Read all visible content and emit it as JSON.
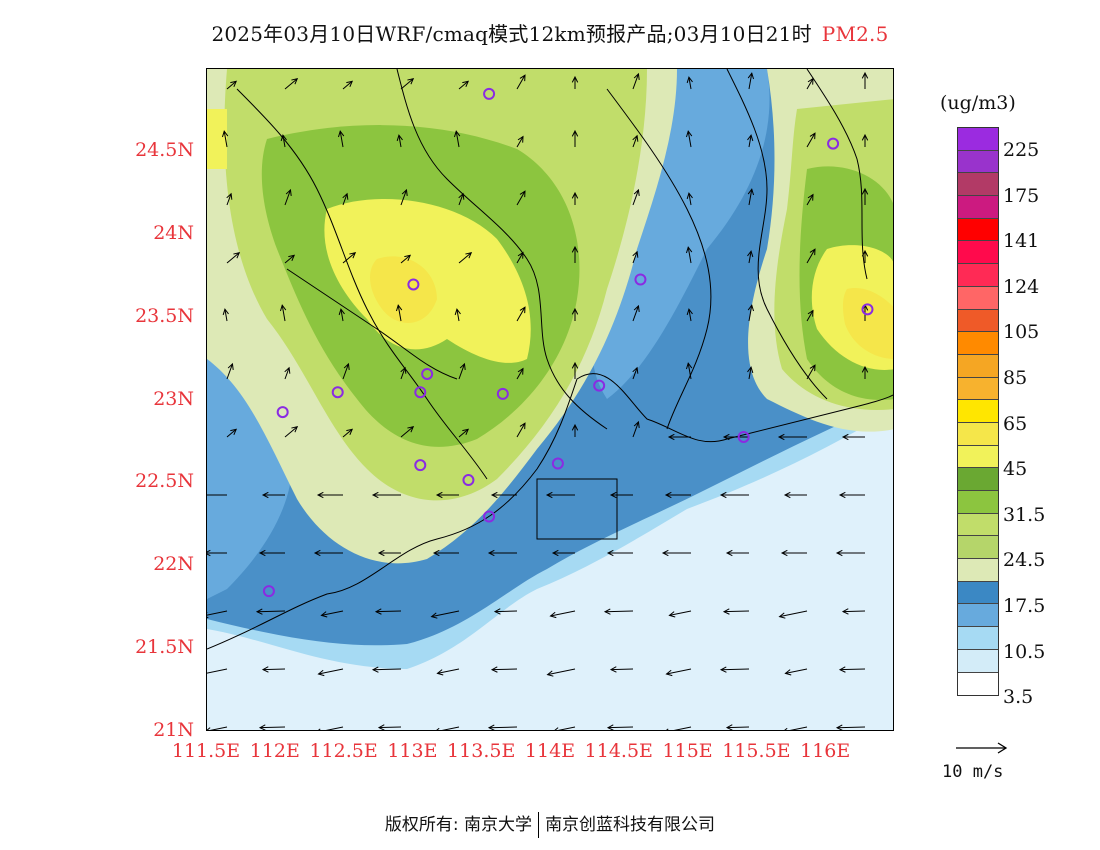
{
  "title": {
    "main": "2025年03月10日WRF/cmaq模式12km预报产品;03月10日21时",
    "pollutant": "PM2.5"
  },
  "axes": {
    "y_ticks": [
      "24.5N",
      "24N",
      "23.5N",
      "23N",
      "22.5N",
      "22N",
      "21.5N",
      "21N"
    ],
    "y_values": [
      24.5,
      24,
      23.5,
      23,
      22.5,
      22,
      21.5,
      21
    ],
    "x_ticks": [
      "111.5E",
      "112E",
      "112.5E",
      "113E",
      "113.5E",
      "114E",
      "114.5E",
      "115E",
      "115.5E",
      "116E"
    ],
    "x_values": [
      111.5,
      112,
      112.5,
      113,
      113.5,
      114,
      114.5,
      115,
      115.5,
      116
    ],
    "lon_range": [
      111.5,
      116.5
    ],
    "lat_range": [
      21,
      25
    ]
  },
  "legend": {
    "unit": "(ug/m3)",
    "colors": [
      "#9b2be0",
      "#9933cc",
      "#b23a66",
      "#cc1a80",
      "#ff0000",
      "#ff0a4c",
      "#ff2a55",
      "#ff6666",
      "#ef5a28",
      "#ff8a00",
      "#f5a623",
      "#f7b22e",
      "#ffe600",
      "#f5e64a",
      "#f1f25a",
      "#6aa832",
      "#8cc53f",
      "#c1dd6a",
      "#b5d56a",
      "#dde9b6",
      "#3b88c4",
      "#67aadd",
      "#a6daf3",
      "#d3ecf8",
      "#ffffff"
    ],
    "labels": [
      "225",
      "175",
      "141",
      "124",
      "105",
      "85",
      "65",
      "45",
      "31.5",
      "24.5",
      "17.5",
      "10.5",
      "3.5"
    ]
  },
  "wind": {
    "reference_label": "10 m/s"
  },
  "stations": [
    {
      "lon": 113.55,
      "lat": 24.85
    },
    {
      "lon": 116.05,
      "lat": 24.55
    },
    {
      "lon": 113.0,
      "lat": 23.7
    },
    {
      "lon": 114.65,
      "lat": 23.73
    },
    {
      "lon": 116.3,
      "lat": 23.55
    },
    {
      "lon": 113.1,
      "lat": 23.16
    },
    {
      "lon": 112.45,
      "lat": 23.05
    },
    {
      "lon": 113.05,
      "lat": 23.05
    },
    {
      "lon": 113.65,
      "lat": 23.04
    },
    {
      "lon": 114.35,
      "lat": 23.09
    },
    {
      "lon": 112.05,
      "lat": 22.93
    },
    {
      "lon": 115.4,
      "lat": 22.78
    },
    {
      "lon": 113.05,
      "lat": 22.61
    },
    {
      "lon": 114.05,
      "lat": 22.62
    },
    {
      "lon": 113.4,
      "lat": 22.52
    },
    {
      "lon": 113.55,
      "lat": 22.3
    },
    {
      "lon": 111.95,
      "lat": 21.85
    }
  ],
  "footer": {
    "copyright": "版权所有: 南京大学",
    "company": "南京创蓝科技有限公司"
  }
}
